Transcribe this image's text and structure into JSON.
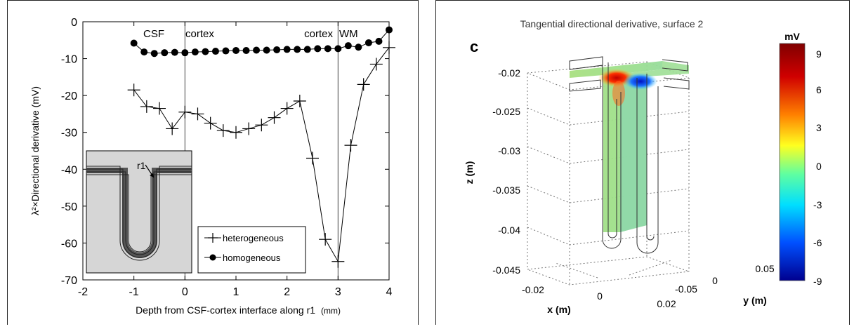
{
  "chart_data": [
    {
      "type": "line",
      "xlabel": "Depth from CSF-cortex interface along r1",
      "xlabel_unit": "(mm)",
      "ylabel": "λ²×Directional derivative (mV)",
      "xlim": [
        -2,
        4
      ],
      "ylim": [
        -70,
        0
      ],
      "x_ticks": [
        -2,
        -1,
        0,
        1,
        2,
        3,
        4
      ],
      "y_ticks": [
        0,
        -10,
        -20,
        -30,
        -40,
        -50,
        -60,
        -70
      ],
      "vlines": [
        0,
        3
      ],
      "region_labels": [
        "CSF",
        "cortex",
        "cortex",
        "WM"
      ],
      "legend_position": "lower-right",
      "inset_label": "r1",
      "series": [
        {
          "name": "heterogeneous",
          "marker": "plus",
          "x": [
            -1.0,
            -0.75,
            -0.5,
            -0.25,
            0.0,
            0.25,
            0.5,
            0.75,
            1.0,
            1.25,
            1.5,
            1.75,
            2.0,
            2.25,
            2.5,
            2.75,
            3.0,
            3.25,
            3.5,
            3.75,
            4.0
          ],
          "y": [
            -18.5,
            -23,
            -23.5,
            -29,
            -24.5,
            -25,
            -27.5,
            -29.5,
            -30,
            -29,
            -28,
            -26,
            -23.5,
            -21.5,
            -37,
            -59,
            -65,
            -33.5,
            -17,
            -11.5,
            -7
          ]
        },
        {
          "name": "homogeneous",
          "marker": "dot",
          "x": [
            -1.0,
            -0.8,
            -0.6,
            -0.4,
            -0.2,
            0.0,
            0.2,
            0.4,
            0.6,
            0.8,
            1.0,
            1.2,
            1.4,
            1.6,
            1.8,
            2.0,
            2.2,
            2.4,
            2.6,
            2.8,
            3.0,
            3.2,
            3.4,
            3.6,
            3.8,
            4.0
          ],
          "y": [
            -5.8,
            -8.2,
            -8.6,
            -8.4,
            -8.3,
            -8.4,
            -8.2,
            -8.1,
            -8.0,
            -7.9,
            -7.8,
            -7.8,
            -7.7,
            -7.7,
            -7.6,
            -7.5,
            -7.5,
            -7.5,
            -7.3,
            -7.3,
            -7.3,
            -6.5,
            -6.9,
            -5.7,
            -5.3,
            -2.2
          ]
        }
      ]
    },
    {
      "type": "surface",
      "panel_letter": "c",
      "title": "Tangential directional derivative, surface 2",
      "zlabel": "z (m)",
      "xlabel": "x (m)",
      "ylabel": "y (m)",
      "z_ticks": [
        "-0.02",
        "-0.025",
        "-0.03",
        "-0.035",
        "-0.04",
        "-0.045"
      ],
      "x_ticks": [
        "-0.02",
        "0",
        "0.02"
      ],
      "y_ticks": [
        "-0.05",
        "0",
        "0.05"
      ],
      "colorbar": {
        "unit": "mV",
        "range": [
          -9,
          9
        ],
        "ticks": [
          "9",
          "6",
          "3",
          "0",
          "-3",
          "-6",
          "-9"
        ],
        "colormap": [
          "#00008f",
          "#0050ff",
          "#00dfff",
          "#60ffa0",
          "#ffff20",
          "#ff8000",
          "#d00000",
          "#800000"
        ]
      }
    }
  ]
}
